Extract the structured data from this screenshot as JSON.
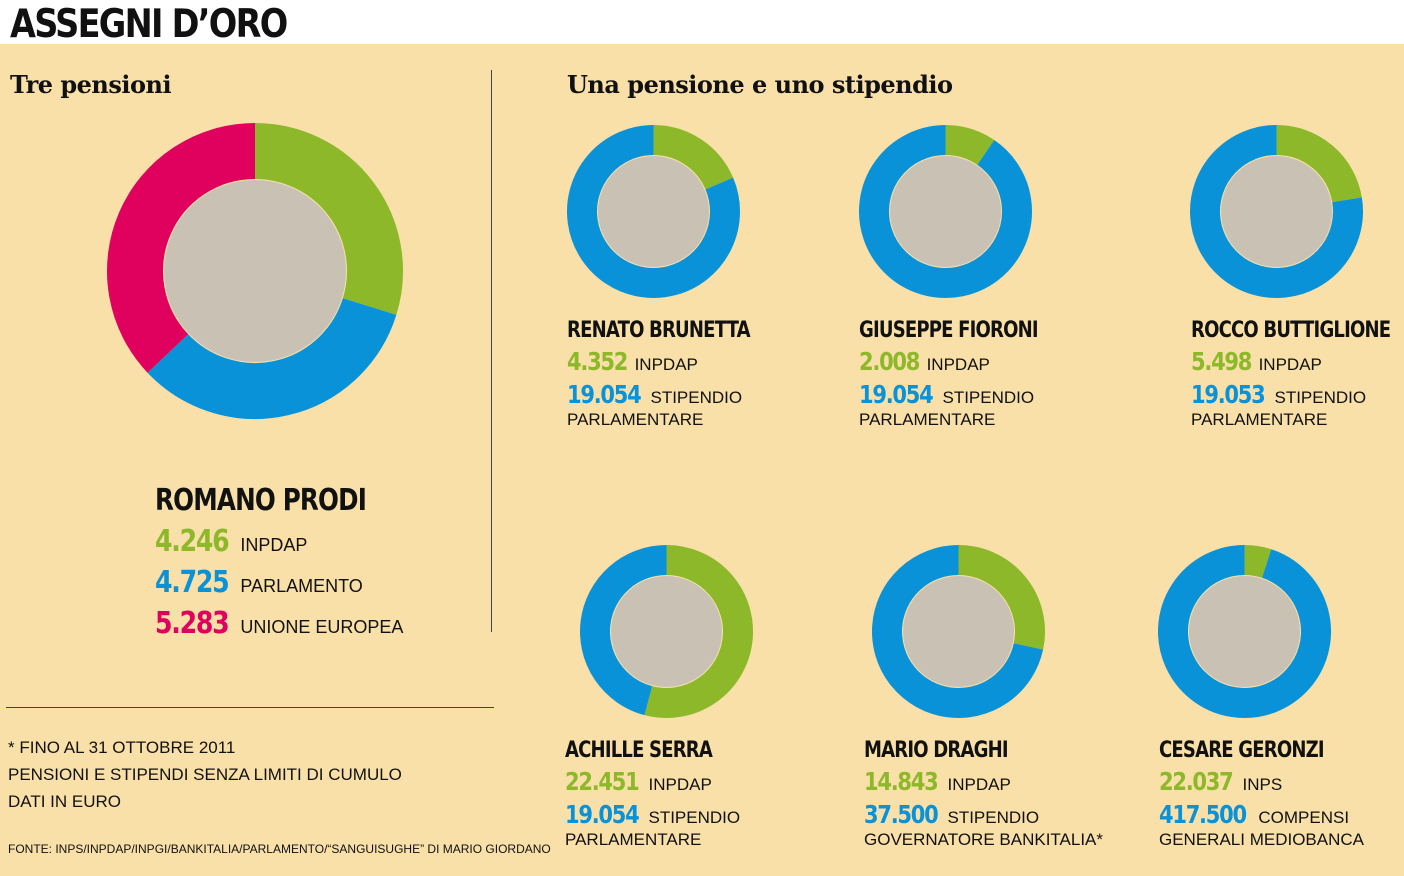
{
  "header": {
    "title": "ASSEGNI D’ORO"
  },
  "sections": {
    "left_title": "Tre pensioni",
    "right_title": "Una pensione e uno stipendio"
  },
  "colors": {
    "green": "#8cb82a",
    "blue": "#0a92d8",
    "magenta": "#e0005e",
    "background": "#f8e0a8"
  },
  "chart_data": [
    {
      "type": "pie",
      "donut": true,
      "name": "ROMANO PRODI",
      "categories": [
        "INPDAP",
        "PARLAMENTO",
        "UNIONE EUROPEA"
      ],
      "values": [
        4246,
        4725,
        5283
      ],
      "display_values": [
        "4.246",
        "4.725",
        "5.283"
      ],
      "colors": [
        "#8cb82a",
        "#0a92d8",
        "#e0005e"
      ]
    },
    {
      "type": "pie",
      "donut": true,
      "name": "RENATO BRUNETTA",
      "categories": [
        "INPDAP",
        "STIPENDIO PARLAMENTARE"
      ],
      "values": [
        4352,
        19054
      ],
      "display_values": [
        "4.352",
        "19.054"
      ],
      "label_lines": [
        [
          "INPDAP"
        ],
        [
          "STIPENDIO",
          "PARLAMENTARE"
        ]
      ],
      "colors": [
        "#8cb82a",
        "#0a92d8"
      ]
    },
    {
      "type": "pie",
      "donut": true,
      "name": "GIUSEPPE FIORONI",
      "categories": [
        "INPDAP",
        "STIPENDIO PARLAMENTARE"
      ],
      "values": [
        2008,
        19054
      ],
      "display_values": [
        "2.008",
        "19.054"
      ],
      "label_lines": [
        [
          "INPDAP"
        ],
        [
          "STIPENDIO",
          "PARLAMENTARE"
        ]
      ],
      "colors": [
        "#8cb82a",
        "#0a92d8"
      ]
    },
    {
      "type": "pie",
      "donut": true,
      "name": "ROCCO BUTTIGLIONE",
      "categories": [
        "INPDAP",
        "STIPENDIO PARLAMENTARE"
      ],
      "values": [
        5498,
        19053
      ],
      "display_values": [
        "5.498",
        "19.053"
      ],
      "label_lines": [
        [
          "INPDAP"
        ],
        [
          "STIPENDIO",
          "PARLAMENTARE"
        ]
      ],
      "colors": [
        "#8cb82a",
        "#0a92d8"
      ]
    },
    {
      "type": "pie",
      "donut": true,
      "name": "ACHILLE SERRA",
      "categories": [
        "INPDAP",
        "STIPENDIO PARLAMENTARE"
      ],
      "values": [
        22451,
        19054
      ],
      "display_values": [
        "22.451",
        "19.054"
      ],
      "label_lines": [
        [
          "INPDAP"
        ],
        [
          "STIPENDIO",
          "PARLAMENTARE"
        ]
      ],
      "colors": [
        "#8cb82a",
        "#0a92d8"
      ]
    },
    {
      "type": "pie",
      "donut": true,
      "name": "MARIO DRAGHI",
      "categories": [
        "INPDAP",
        "STIPENDIO GOVERNATORE BANKITALIA*"
      ],
      "values": [
        14843,
        37500
      ],
      "display_values": [
        "14.843",
        "37.500"
      ],
      "label_lines": [
        [
          "INPDAP"
        ],
        [
          "STIPENDIO",
          "GOVERNATORE BANKITALIA*"
        ]
      ],
      "colors": [
        "#8cb82a",
        "#0a92d8"
      ]
    },
    {
      "type": "pie",
      "donut": true,
      "name": "CESARE GERONZI",
      "categories": [
        "INPS",
        "COMPENSI GENERALI MEDIOBANCA"
      ],
      "values": [
        22037,
        417500
      ],
      "display_values": [
        "22.037",
        "417.500"
      ],
      "label_lines": [
        [
          "INPS"
        ],
        [
          "COMPENSI",
          "GENERALI MEDIOBANCA"
        ]
      ],
      "colors": [
        "#8cb82a",
        "#0a92d8"
      ]
    }
  ],
  "footnotes": {
    "lines": [
      "* FINO AL 31 OTTOBRE 2011",
      "PENSIONI E STIPENDI SENZA LIMITI DI CUMULO",
      "DATI IN EURO"
    ],
    "source": "FONTE: INPS/INPDAP/INPGI/BANKITALIA/PARLAMENTO/“SANGUISUGHE” DI MARIO GIORDANO"
  }
}
